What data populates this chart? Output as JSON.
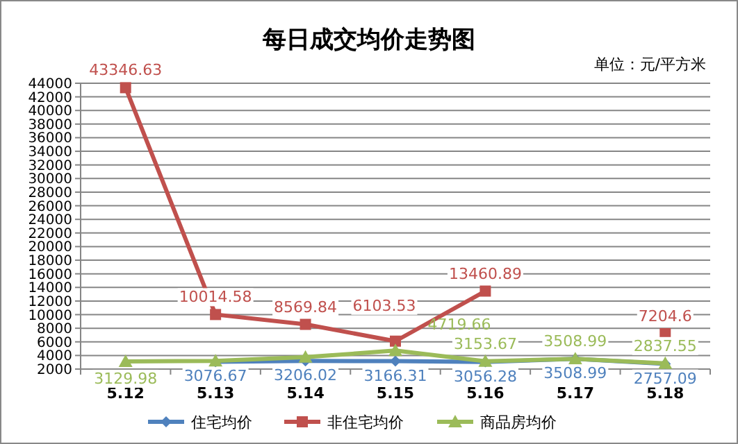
{
  "chart_data": {
    "type": "line",
    "title": "每日成交均价走势图",
    "annotations": [
      "单位：元/平方米"
    ],
    "categories": [
      "5.12",
      "5.13",
      "5.14",
      "5.15",
      "5.16",
      "5.17",
      "5.18"
    ],
    "ylim": [
      2000,
      44000
    ],
    "yticks": [
      2000,
      4000,
      6000,
      8000,
      10000,
      12000,
      14000,
      16000,
      18000,
      20000,
      22000,
      24000,
      26000,
      28000,
      30000,
      32000,
      34000,
      36000,
      38000,
      40000,
      42000,
      44000
    ],
    "grid": "y",
    "legend": "bottom",
    "line_style": "solid",
    "series": [
      {
        "name": "住宅均价",
        "color": "#4f81bd",
        "marker": "diamond",
        "values": [
          null,
          3076.67,
          3206.02,
          3166.31,
          3056.28,
          3508.99,
          2757.09
        ],
        "value_labels": [
          null,
          "3076.67",
          "3206.02",
          "3166.31",
          "3056.28",
          "3508.99",
          "2757.09"
        ]
      },
      {
        "name": "非住宅均价",
        "color": "#c0504d",
        "marker": "square",
        "values": [
          43346.63,
          10014.58,
          8569.84,
          6103.53,
          13460.89,
          null,
          7204.6
        ],
        "value_labels": [
          "43346.63",
          "10014.58",
          "8569.84",
          "6103.53",
          "13460.89",
          null,
          "7204.6"
        ]
      },
      {
        "name": "商品房均价",
        "color": "#9bbb59",
        "marker": "triangle",
        "values": [
          3129.98,
          3200,
          3750,
          4719.66,
          3153.67,
          3508.99,
          2837.55
        ],
        "value_labels": [
          "3129.98",
          null,
          null,
          "4719.66",
          "3153.67",
          "3508.99",
          "2837.55"
        ]
      }
    ]
  }
}
